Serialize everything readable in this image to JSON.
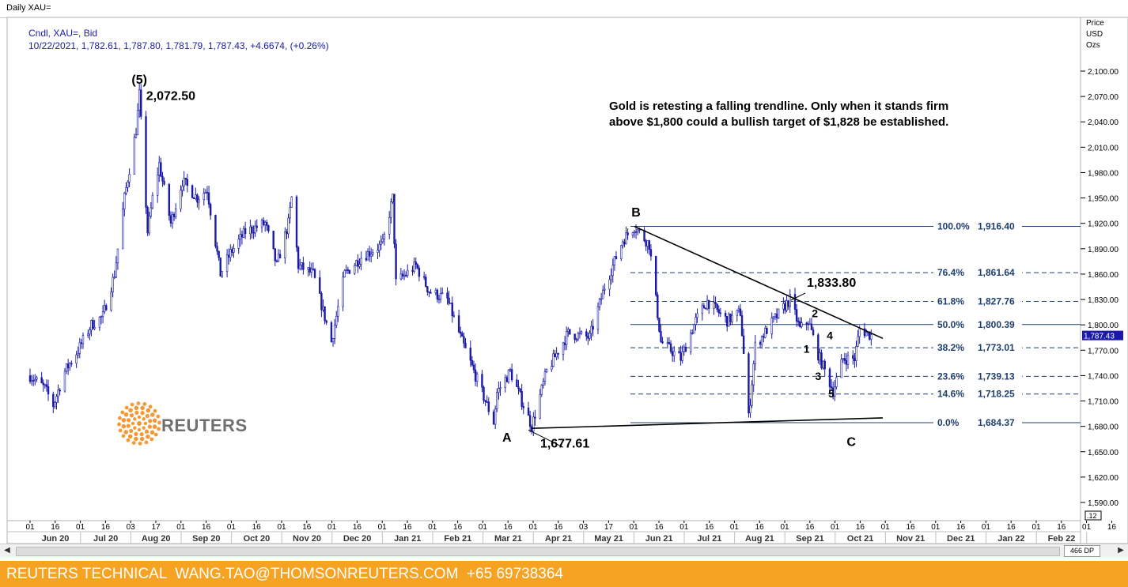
{
  "window_title": "Daily XAU=",
  "legend": {
    "line1": "Cndl, XAU=, Bid",
    "line2": "10/22/2021, 1,782.61, 1,787.80, 1,781.79, 1,787.43, +4.6674, (+0.26%)"
  },
  "annotation": {
    "line1": "Gold is retesting a falling trendline. Only when it stands firm",
    "line2": "above $1,800 could a bullish target of $1,828 be established."
  },
  "footer": {
    "text": "REUTERS TECHNICAL  WANG.TAO@THOMSONREUTERS.COM  +65 69738364"
  },
  "logo": {
    "text": "REUTERS",
    "icon": "reuters-dot-logo-icon",
    "color": "#f29a36"
  },
  "scrollbar": {
    "zoom": "466 DP",
    "left_arrow": "◀",
    "right_arrow": "▶"
  },
  "colors": {
    "candle": "#1a1aa6",
    "fib": "#1f3f6e",
    "price_tag": "#1a1aa6",
    "footer": "#f6a223",
    "legend_text": "#1a1aa6"
  },
  "chart_data": {
    "type": "candlestick",
    "instrument": "XAU=",
    "y_axis": {
      "label_lines": [
        "Price",
        "USD",
        "Ozs"
      ],
      "min": 1570,
      "max": 2115,
      "ticks": [
        1590,
        1620,
        1650,
        1680,
        1710,
        1740,
        1770,
        1800,
        1830,
        1860,
        1890,
        1920,
        1950,
        1980,
        2010,
        2040,
        2070,
        2100
      ],
      "tick_labels": [
        "1,590.00",
        "1,620.00",
        "1,650.00",
        "1,680.00",
        "1,710.00",
        "1,740.00",
        "1,770.00",
        "1,800.00",
        "1,830.00",
        "1,860.00",
        "1,890.00",
        "1,920.00",
        "1,950.00",
        "1,980.00",
        "2,010.00",
        "2,040.00",
        "2,070.00",
        "2,100.00"
      ],
      "last_price_tag": "1,787.43",
      "last_price": 1787.43,
      "bottom_tag": ".12"
    },
    "x_axis": {
      "day_labels": [
        "01",
        "16",
        "01",
        "16",
        "03",
        "17",
        "01",
        "16",
        "01",
        "16",
        "01",
        "16",
        "01",
        "16",
        "01",
        "16",
        "01",
        "16",
        "01",
        "16",
        "01",
        "16",
        "03",
        "17",
        "01",
        "16",
        "01",
        "16",
        "01",
        "16",
        "01",
        "16",
        "01",
        "16",
        "01",
        "16",
        "01",
        "16",
        "01",
        "16",
        "01",
        "16",
        "01",
        "16",
        "03",
        "17",
        "01",
        "16",
        "01"
      ],
      "month_labels": [
        "Jun 20",
        "Jul 20",
        "Aug 20",
        "Sep 20",
        "Oct 20",
        "Nov 20",
        "Dec 20",
        "Jan 21",
        "Feb 21",
        "Mar 21",
        "Apr 21",
        "May 21",
        "Jun 21",
        "Jul 21",
        "Aug 21",
        "Sep 21",
        "Oct 21",
        "Nov 21",
        "Dec 21",
        "Jan 22",
        "Feb 22"
      ]
    },
    "ohlc_path": [
      [
        "2020-06-01",
        1740
      ],
      [
        "2020-06-10",
        1725
      ],
      [
        "2020-06-15",
        1705
      ],
      [
        "2020-06-22",
        1745
      ],
      [
        "2020-06-30",
        1770
      ],
      [
        "2020-07-08",
        1800
      ],
      [
        "2020-07-15",
        1810
      ],
      [
        "2020-07-22",
        1860
      ],
      [
        "2020-07-28",
        1950
      ],
      [
        "2020-08-04",
        2030
      ],
      [
        "2020-08-06",
        2072.5
      ],
      [
        "2020-08-11",
        1910
      ],
      [
        "2020-08-14",
        1950
      ],
      [
        "2020-08-18",
        1990
      ],
      [
        "2020-08-25",
        1920
      ],
      [
        "2020-09-01",
        1970
      ],
      [
        "2020-09-10",
        1950
      ],
      [
        "2020-09-16",
        1960
      ],
      [
        "2020-09-24",
        1860
      ],
      [
        "2020-09-30",
        1885
      ],
      [
        "2020-10-09",
        1910
      ],
      [
        "2020-10-21",
        1920
      ],
      [
        "2020-10-28",
        1870
      ],
      [
        "2020-11-04",
        1920
      ],
      [
        "2020-11-06",
        1950
      ],
      [
        "2020-11-10",
        1870
      ],
      [
        "2020-11-19",
        1860
      ],
      [
        "2020-11-30",
        1780
      ],
      [
        "2020-12-08",
        1860
      ],
      [
        "2020-12-18",
        1880
      ],
      [
        "2020-12-31",
        1895
      ],
      [
        "2021-01-06",
        1950
      ],
      [
        "2021-01-08",
        1850
      ],
      [
        "2021-01-20",
        1870
      ],
      [
        "2021-01-28",
        1840
      ],
      [
        "2021-02-08",
        1830
      ],
      [
        "2021-02-17",
        1780
      ],
      [
        "2021-02-26",
        1735
      ],
      [
        "2021-03-08",
        1685
      ],
      [
        "2021-03-10",
        1720
      ],
      [
        "2021-03-18",
        1745
      ],
      [
        "2021-03-31",
        1680
      ],
      [
        "2021-04-09",
        1745
      ],
      [
        "2021-04-22",
        1790
      ],
      [
        "2021-05-05",
        1785
      ],
      [
        "2021-05-14",
        1845
      ],
      [
        "2021-05-25",
        1900
      ],
      [
        "2021-06-01",
        1916.4
      ],
      [
        "2021-06-10",
        1895
      ],
      [
        "2021-06-17",
        1780
      ],
      [
        "2021-06-29",
        1760
      ],
      [
        "2021-07-08",
        1805
      ],
      [
        "2021-07-15",
        1828
      ],
      [
        "2021-07-27",
        1805
      ],
      [
        "2021-08-04",
        1815
      ],
      [
        "2021-08-09",
        1690
      ],
      [
        "2021-08-13",
        1775
      ],
      [
        "2021-08-24",
        1805
      ],
      [
        "2021-09-03",
        1830
      ],
      [
        "2021-09-09",
        1795
      ],
      [
        "2021-09-14",
        1805
      ],
      [
        "2021-09-20",
        1765
      ],
      [
        "2021-09-29",
        1722
      ],
      [
        "2021-10-05",
        1760
      ],
      [
        "2021-10-12",
        1760
      ],
      [
        "2021-10-15",
        1795
      ],
      [
        "2021-10-22",
        1787.43
      ]
    ],
    "fibonacci": [
      {
        "level": "100.0%",
        "price": 1916.4,
        "label": "1,916.40"
      },
      {
        "level": "76.4%",
        "price": 1861.64,
        "label": "1,861.64"
      },
      {
        "level": "61.8%",
        "price": 1827.76,
        "label": "1,827.76"
      },
      {
        "level": "50.0%",
        "price": 1800.39,
        "label": "1,800.39"
      },
      {
        "level": "38.2%",
        "price": 1773.01,
        "label": "1,773.01"
      },
      {
        "level": "23.6%",
        "price": 1739.13,
        "label": "1,739.13"
      },
      {
        "level": "14.6%",
        "price": 1718.25,
        "label": "1,718.25"
      },
      {
        "level": "0.0%",
        "price": 1684.37,
        "label": "1,684.37"
      }
    ],
    "trendlines": [
      {
        "name": "falling-trendline",
        "from": [
          "2021-06-01",
          1916.4
        ],
        "to": [
          "2021-10-29",
          1784
        ]
      },
      {
        "name": "rising-support-line",
        "from": [
          "2021-03-31",
          1677.61
        ],
        "to": [
          "2021-10-29",
          1690
        ]
      }
    ],
    "labels": [
      {
        "text": "(5)",
        "date": "2020-08-06",
        "price": 2085
      },
      {
        "text": "2,072.50",
        "date": "2020-08-25",
        "price": 2066
      },
      {
        "text": "B",
        "date": "2021-06-02",
        "price": 1928
      },
      {
        "text": "A",
        "date": "2021-03-16",
        "price": 1662
      },
      {
        "text": "1,677.61",
        "date": "2021-04-20",
        "price": 1655
      },
      {
        "text": "1,833.80",
        "date": "2021-09-28",
        "price": 1845
      },
      {
        "text": "C",
        "date": "2021-10-10",
        "price": 1657
      },
      {
        "text": "1",
        "date": "2021-09-13",
        "price": 1767
      },
      {
        "text": "2",
        "date": "2021-09-18",
        "price": 1809
      },
      {
        "text": "3",
        "date": "2021-09-20",
        "price": 1735
      },
      {
        "text": "4",
        "date": "2021-09-27",
        "price": 1783
      },
      {
        "text": "5",
        "date": "2021-09-28",
        "price": 1714
      }
    ]
  }
}
